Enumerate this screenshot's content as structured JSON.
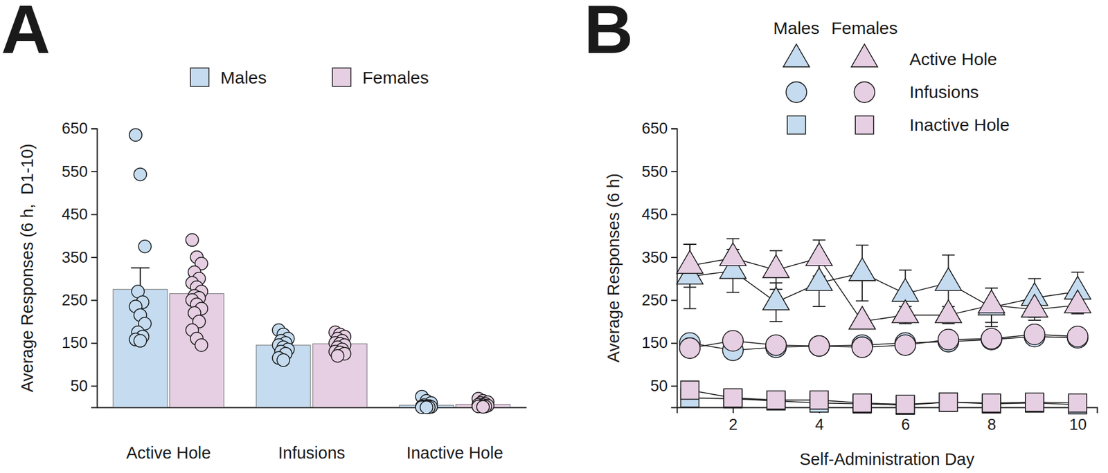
{
  "chart_data": [
    {
      "type": "bar",
      "title": "A",
      "y_label": "Average Responses (6 h,  D1-10)",
      "categories": [
        "Active Hole",
        "Infusions",
        "Inactive Hole"
      ],
      "series": [
        {
          "name": "Males",
          "color": "#c5dcf0",
          "values": [
            275,
            145,
            5
          ],
          "errors": [
            50,
            8,
            2
          ],
          "points": [
            [
              635,
              543,
              375,
              270,
              245,
              235,
              215,
              195,
              175,
              165,
              158,
              155
            ],
            [
              180,
              170,
              160,
              155,
              150,
              145,
              140,
              135,
              130,
              125,
              115,
              110
            ],
            [
              25,
              15,
              10,
              5,
              3,
              2,
              2,
              1,
              1,
              0,
              0,
              0
            ]
          ]
        },
        {
          "name": "Females",
          "color": "#e7cfe3",
          "values": [
            265,
            148,
            7
          ],
          "errors": [
            15,
            5,
            2
          ],
          "points": [
            [
              390,
              350,
              335,
              315,
              300,
              290,
              280,
              270,
              260,
              255,
              250,
              240,
              230,
              220,
              200,
              180,
              160,
              145
            ],
            [
              175,
              170,
              165,
              160,
              155,
              150,
              148,
              145,
              140,
              135,
              130,
              128,
              125,
              120
            ],
            [
              20,
              15,
              12,
              10,
              8,
              6,
              5,
              4,
              3,
              2,
              2,
              1
            ]
          ]
        }
      ],
      "ylim": [
        0,
        650
      ],
      "yticks": [
        50,
        150,
        250,
        350,
        450,
        550,
        650
      ],
      "legend": "top"
    },
    {
      "type": "line",
      "title": "B",
      "x_label": "Self-Administration Day",
      "y_label": "Average Responses (6 h)",
      "x": [
        1,
        2,
        3,
        4,
        5,
        6,
        7,
        8,
        9,
        10
      ],
      "xlim": [
        0.7,
        10.45
      ],
      "xticks": [
        2,
        4,
        6,
        8,
        10
      ],
      "ylim": [
        0,
        650
      ],
      "yticks": [
        50,
        150,
        250,
        350,
        450,
        550,
        650
      ],
      "groups": [
        {
          "name": "Males",
          "color": "#c5dcf0"
        },
        {
          "name": "Females",
          "color": "#e7cfe3"
        }
      ],
      "series": [
        {
          "name": "Active Hole",
          "marker": "triangle",
          "values": [
            [
              305,
              318,
              245,
              290,
              313,
              265,
              290,
              233,
              255,
              270
            ],
            [
              330,
              348,
              320,
              348,
              200,
              215,
              215,
              238,
              228,
              238
            ]
          ],
          "errors": [
            [
              75,
              50,
              45,
              55,
              65,
              55,
              65,
              45,
              45,
              45
            ],
            [
              50,
              45,
              45,
              42,
              10,
              20,
              20,
              40,
              25,
              20
            ]
          ]
        },
        {
          "name": "Infusions",
          "marker": "circle",
          "values": [
            [
              150,
              133,
              140,
              143,
              145,
              150,
              153,
              158,
              165,
              162
            ],
            [
              138,
              155,
              145,
              143,
              140,
              145,
              158,
              160,
              170,
              165
            ]
          ],
          "errors": [
            [
              10,
              10,
              8,
              8,
              8,
              8,
              8,
              8,
              8,
              8
            ],
            [
              8,
              8,
              8,
              8,
              8,
              8,
              8,
              8,
              8,
              8
            ]
          ]
        },
        {
          "name": "Inactive Hole",
          "marker": "square",
          "values": [
            [
              22,
              20,
              15,
              10,
              8,
              5,
              12,
              8,
              10,
              6
            ],
            [
              40,
              22,
              17,
              17,
              10,
              7,
              12,
              10,
              12,
              10
            ]
          ],
          "errors": [
            [
              5,
              5,
              4,
              4,
              3,
              3,
              4,
              3,
              3,
              3
            ],
            [
              6,
              5,
              4,
              4,
              3,
              3,
              3,
              3,
              3,
              3
            ]
          ]
        }
      ],
      "legend": "top"
    }
  ]
}
